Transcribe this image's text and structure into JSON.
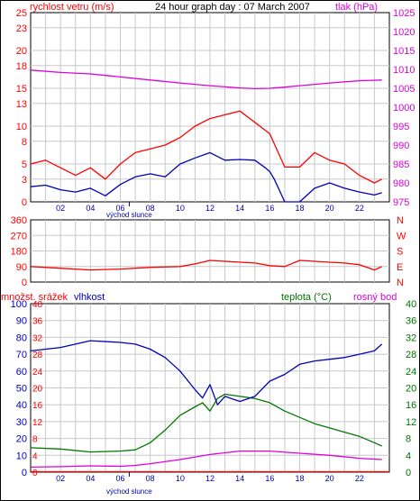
{
  "title": "24 hour graph day : 07 March 2007",
  "colors": {
    "wind": "#ff0000",
    "gust": "#ff0000",
    "pressure": "#dd00dd",
    "humidity": "#0000bb",
    "temperature": "#007700",
    "dewpoint": "#dd00dd",
    "precip": "#ff0000",
    "grid": "#c8c8c8"
  },
  "chart_data": [
    {
      "type": "line",
      "name": "wind-pressure",
      "left_label": "rychlost vetru (m/s)",
      "right_label": "tlak (hPa)",
      "x_tick_labels": [
        "02",
        "04",
        "06",
        "08",
        "10",
        "12",
        "14",
        "16",
        "18",
        "20",
        "22"
      ],
      "x_ticks": [
        2,
        4,
        6,
        8,
        10,
        12,
        14,
        16,
        18,
        20,
        22
      ],
      "xlim": [
        0,
        24
      ],
      "sunrise_label": "východ slunce",
      "sunrise_hour": 6.6,
      "y_left_ticks": [
        0,
        3,
        5,
        8,
        10,
        13,
        15,
        18,
        20,
        23,
        25
      ],
      "y_left_lim": [
        0,
        25
      ],
      "y_right_ticks": [
        975,
        980,
        985,
        990,
        995,
        1000,
        1005,
        1010,
        1015,
        1020,
        1025
      ],
      "y_right_lim": [
        975,
        1025
      ],
      "pressure": {
        "x": [
          0,
          2,
          4,
          6,
          8,
          10,
          12,
          14,
          15,
          16,
          17,
          18,
          20,
          22,
          23.5
        ],
        "values": [
          1009.8,
          1009.2,
          1008.8,
          1008.0,
          1007.2,
          1006.4,
          1005.7,
          1005.1,
          1004.9,
          1005.0,
          1005.3,
          1005.7,
          1006.4,
          1007.0,
          1007.2
        ]
      },
      "wind": {
        "x": [
          0,
          1,
          2,
          3,
          4,
          5,
          6,
          7,
          8,
          9,
          10,
          11,
          12,
          13,
          14,
          15,
          15.7,
          16,
          16.3,
          17,
          18,
          19,
          20,
          21,
          22,
          23,
          23.5
        ],
        "values": [
          2,
          2.2,
          1.6,
          1.3,
          1.8,
          0.8,
          2.3,
          3.3,
          3.7,
          3.3,
          5.0,
          5.8,
          6.5,
          5.5,
          5.6,
          5.5,
          4.5,
          4.0,
          3.0,
          0,
          0,
          1.8,
          2.5,
          1.8,
          1.3,
          0.9,
          1.2
        ]
      },
      "gust": {
        "x": [
          0,
          1,
          2,
          3,
          4,
          5,
          6,
          7,
          8,
          9,
          10,
          11,
          12,
          13,
          14,
          15,
          16,
          17,
          18,
          19,
          20,
          21,
          22,
          23,
          23.5
        ],
        "values": [
          5,
          5.5,
          4.5,
          3.5,
          4.5,
          3,
          5,
          6.5,
          7,
          7.5,
          8.5,
          10,
          11,
          11.5,
          12,
          10.5,
          9,
          4.6,
          4.6,
          6.5,
          5.5,
          5,
          3.5,
          2.5,
          3
        ]
      }
    },
    {
      "type": "line",
      "name": "wind-direction",
      "x_tick_labels": [],
      "xlim": [
        0,
        24
      ],
      "y_left_ticks": [
        0,
        90,
        180,
        270,
        360
      ],
      "y_left_lim": [
        0,
        360
      ],
      "y_right_labels": [
        "N",
        "W",
        "S",
        "E",
        "N"
      ],
      "direction": {
        "x": [
          0,
          2,
          4,
          6,
          8,
          10,
          11,
          12,
          13,
          14,
          15,
          16,
          17,
          18,
          19,
          20,
          21,
          22,
          23,
          23.5
        ],
        "values": [
          90,
          80,
          70,
          75,
          85,
          90,
          105,
          125,
          120,
          115,
          110,
          95,
          90,
          125,
          120,
          115,
          110,
          100,
          70,
          90
        ]
      }
    },
    {
      "type": "line",
      "name": "humidity-temperature",
      "left_label": "množst. srážek",
      "left_label_2": "vlhkost",
      "right_label": "teplota (°C)",
      "right_label_2": "rosný bod",
      "x_tick_labels": [
        "02",
        "04",
        "06",
        "08",
        "10",
        "12",
        "14",
        "16",
        "18",
        "20",
        "22"
      ],
      "x_ticks": [
        2,
        4,
        6,
        8,
        10,
        12,
        14,
        16,
        18,
        20,
        22
      ],
      "xlim": [
        0,
        24
      ],
      "sunrise_label": "východ slunce",
      "sunrise_hour": 6.6,
      "y_left_ticks": [
        0,
        10,
        20,
        30,
        40,
        50,
        60,
        70,
        80,
        90,
        100
      ],
      "y_left_lim": [
        0,
        100
      ],
      "y_precip_ticks": [
        0,
        4,
        8,
        12,
        16,
        20,
        24,
        28,
        32,
        36,
        40
      ],
      "y_right_ticks": [
        0,
        4,
        8,
        12,
        16,
        20,
        24,
        28,
        32,
        36,
        40
      ],
      "y_right_lim": [
        0,
        40
      ],
      "humidity": {
        "x": [
          0,
          2,
          4,
          6,
          7,
          8,
          9,
          10,
          11,
          11.5,
          12,
          12.5,
          13,
          14,
          15,
          16,
          17,
          18,
          19,
          20,
          21,
          22,
          23,
          23.5
        ],
        "values": [
          72,
          74,
          78,
          77,
          76,
          73,
          68,
          60,
          49,
          44,
          52,
          40,
          45,
          42,
          45,
          54,
          58,
          64,
          66,
          67,
          68,
          70,
          72,
          76
        ]
      },
      "temperature": {
        "x": [
          0,
          2,
          4,
          6,
          7,
          8,
          9,
          10,
          11,
          11.5,
          12,
          12.5,
          13,
          14,
          15,
          16,
          17,
          18,
          19,
          20,
          21,
          22,
          23,
          23.5
        ],
        "values": [
          5.8,
          5.5,
          4.8,
          5.0,
          5.3,
          7.0,
          10.0,
          13.5,
          15.5,
          16.5,
          14.5,
          17.5,
          18.5,
          18.0,
          17.5,
          16.5,
          14.5,
          13.0,
          11.5,
          10.5,
          9.5,
          8.5,
          7.0,
          6.2
        ]
      },
      "dewpoint": {
        "x": [
          0,
          2,
          4,
          6,
          7,
          8,
          10,
          12,
          14,
          16,
          18,
          20,
          22,
          23.5
        ],
        "values": [
          1.2,
          1.3,
          1.5,
          1.4,
          1.6,
          2.0,
          3.0,
          4.2,
          5.0,
          5.0,
          4.5,
          4.0,
          3.3,
          3.0
        ]
      },
      "precip": {
        "x": [
          0,
          24
        ],
        "values": [
          0.1,
          0.1
        ]
      }
    }
  ]
}
